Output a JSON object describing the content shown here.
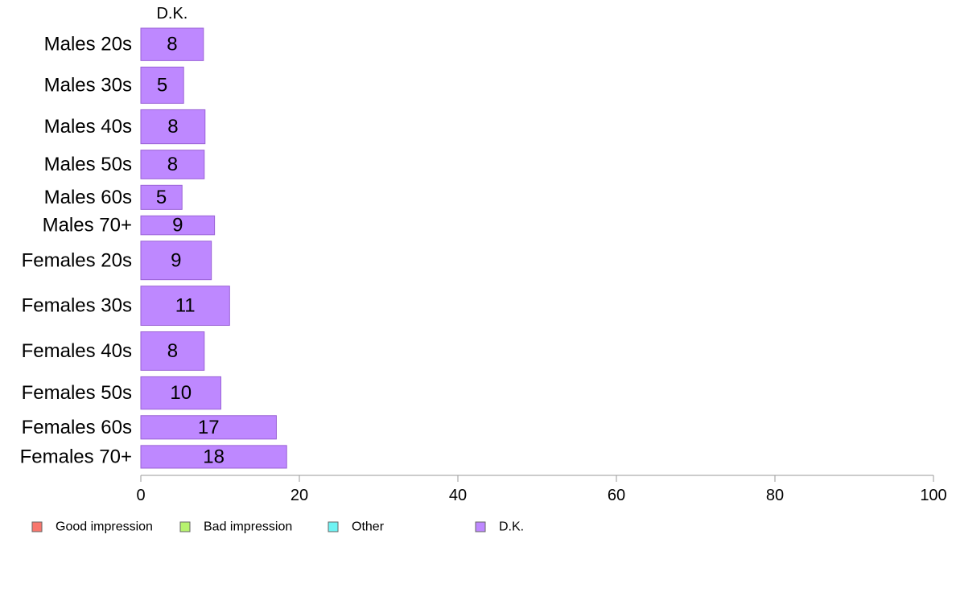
{
  "chart_data": {
    "type": "bar",
    "orientation": "horizontal",
    "stacked": true,
    "column_header": "D.K.",
    "categories": [
      "Males 20s",
      "Males 30s",
      "Males 40s",
      "Males 50s",
      "Males 60s",
      "Males 70+",
      "Females 20s",
      "Females 30s",
      "Females 40s",
      "Females 50s",
      "Females 60s",
      "Females 70+"
    ],
    "weights": [
      43,
      48,
      45,
      38,
      32,
      25,
      51,
      52,
      51,
      43,
      31,
      30
    ],
    "series": [
      {
        "name": "Good impression",
        "color": "#F8766D",
        "values": [
          0,
          0,
          0,
          0,
          0,
          0,
          0,
          0,
          0,
          0,
          0,
          0
        ]
      },
      {
        "name": "Bad impression",
        "color": "#B7F36F",
        "values": [
          0,
          0,
          0,
          0,
          0,
          0,
          0,
          0,
          0,
          0,
          0,
          0
        ]
      },
      {
        "name": "Other",
        "color": "#6FF3F3",
        "values": [
          0,
          0,
          0,
          0,
          0,
          0,
          0,
          0,
          0,
          0,
          0,
          0
        ]
      },
      {
        "name": "D.K.",
        "color": "#BE88FF",
        "values": [
          7.9,
          5.4,
          8.1,
          8.0,
          5.2,
          9.3,
          8.9,
          11.2,
          8.0,
          10.1,
          17.1,
          18.4
        ]
      }
    ],
    "data_labels": [
      "8",
      "5",
      "8",
      "8",
      "5",
      "9",
      "9",
      "11",
      "8",
      "10",
      "17",
      "18"
    ],
    "xlim": [
      0,
      100
    ],
    "x_ticks": [
      0,
      20,
      40,
      60,
      80,
      100
    ],
    "x_tick_labels": [
      "0",
      "20",
      "40",
      "60",
      "80",
      "100"
    ],
    "bar_stroke": "#9A62D6",
    "axis_color": "#999999",
    "grid": false,
    "legend_position": "bottom"
  }
}
